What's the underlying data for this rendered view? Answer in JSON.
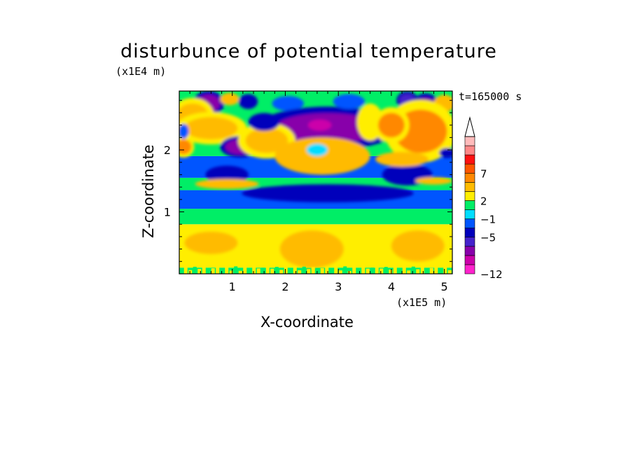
{
  "chart_data": {
    "type": "heatmap",
    "title": "disturbunce of potential temperature",
    "time_label": "t=165000 s",
    "xlabel": "X-coordinate",
    "ylabel": "Z-coordinate",
    "x_unit": "(x1E5 m)",
    "y_unit": "(x1E4 m)",
    "xlim": [
      0,
      5.15
    ],
    "ylim": [
      0,
      2.95
    ],
    "x_ticks": [
      1,
      2,
      3,
      4,
      5
    ],
    "y_ticks": [
      1,
      2
    ],
    "colorbar": {
      "colors": [
        "#ff22cc",
        "#cc00aa",
        "#8800aa",
        "#4422cc",
        "#0000bb",
        "#0055ff",
        "#00ddff",
        "#00ee66",
        "#ffee00",
        "#ffbb00",
        "#ff8800",
        "#ff5500",
        "#ff1111",
        "#ff8888",
        "#ffbbbb"
      ],
      "labels": [
        "-12",
        "-5",
        "-1",
        "2",
        "7"
      ],
      "extend": "max"
    },
    "features": [
      {
        "x": 0.55,
        "z": 2.75,
        "value": -6,
        "rx": 0.22,
        "rz": 0.14
      },
      {
        "x": 0.95,
        "z": 2.82,
        "value": 3,
        "rx": 0.18,
        "rz": 0.1
      },
      {
        "x": 1.3,
        "z": 2.78,
        "value": -3,
        "rx": 0.18,
        "rz": 0.12
      },
      {
        "x": 2.05,
        "z": 2.75,
        "value": -2,
        "rx": 0.3,
        "rz": 0.12
      },
      {
        "x": 2.8,
        "z": 2.35,
        "value": -6,
        "rx": 1.0,
        "rz": 0.24
      },
      {
        "x": 2.65,
        "z": 2.4,
        "value": -9,
        "rx": 0.22,
        "rz": 0.09
      },
      {
        "x": 3.2,
        "z": 2.78,
        "value": -2,
        "rx": 0.3,
        "rz": 0.12
      },
      {
        "x": 4.3,
        "z": 2.8,
        "value": -5,
        "rx": 0.15,
        "rz": 0.1
      },
      {
        "x": 4.65,
        "z": 2.68,
        "value": -6,
        "rx": 0.2,
        "rz": 0.16
      },
      {
        "x": 5.0,
        "z": 2.75,
        "value": 3,
        "rx": 0.2,
        "rz": 0.14
      },
      {
        "x": 0.25,
        "z": 2.55,
        "value": 4,
        "rx": 0.3,
        "rz": 0.2
      },
      {
        "x": 0.6,
        "z": 2.35,
        "value": 4,
        "rx": 0.5,
        "rz": 0.18
      },
      {
        "x": 1.15,
        "z": 2.05,
        "value": -6,
        "rx": 0.28,
        "rz": 0.12
      },
      {
        "x": 1.65,
        "z": 2.15,
        "value": 4,
        "rx": 0.4,
        "rz": 0.2
      },
      {
        "x": 1.6,
        "z": 2.45,
        "value": -4,
        "rx": 0.22,
        "rz": 0.1
      },
      {
        "x": 0.9,
        "z": 1.6,
        "value": -4,
        "rx": 0.3,
        "rz": 0.1
      },
      {
        "x": 0.08,
        "z": 2.05,
        "value": 5,
        "rx": 0.15,
        "rz": 0.12
      },
      {
        "x": 0.08,
        "z": 2.3,
        "value": -2,
        "rx": 0.1,
        "rz": 0.12
      },
      {
        "x": 1.5,
        "z": 1.3,
        "value": -3,
        "rx": 0.25,
        "rz": 0.08
      },
      {
        "x": 2.8,
        "z": 1.3,
        "value": -4,
        "rx": 1.2,
        "rz": 0.1
      },
      {
        "x": 2.7,
        "z": 1.9,
        "value": 3,
        "rx": 0.9,
        "rz": 0.3
      },
      {
        "x": 2.6,
        "z": 2.0,
        "value": -1,
        "rx": 0.2,
        "rz": 0.1
      },
      {
        "x": 3.6,
        "z": 2.45,
        "value": 2,
        "rx": 0.25,
        "rz": 0.3
      },
      {
        "x": 4.55,
        "z": 2.3,
        "value": 8,
        "rx": 0.3,
        "rz": 0.2
      },
      {
        "x": 4.55,
        "z": 2.3,
        "value": 5,
        "rx": 0.5,
        "rz": 0.35
      },
      {
        "x": 4.0,
        "z": 2.4,
        "value": 5,
        "rx": 0.25,
        "rz": 0.2
      },
      {
        "x": 4.3,
        "z": 1.6,
        "value": -4,
        "rx": 0.35,
        "rz": 0.12
      },
      {
        "x": 4.2,
        "z": 1.85,
        "value": 3,
        "rx": 0.5,
        "rz": 0.12
      },
      {
        "x": 5.05,
        "z": 1.95,
        "value": -3,
        "rx": 0.15,
        "rz": 0.08
      },
      {
        "x": 0.9,
        "z": 1.45,
        "value": 3,
        "rx": 0.6,
        "rz": 0.08
      },
      {
        "x": 4.8,
        "z": 1.5,
        "value": 3,
        "rx": 0.35,
        "rz": 0.06
      },
      {
        "x": 2.5,
        "z": 0.4,
        "value": 3,
        "rx": 0.6,
        "rz": 0.3
      },
      {
        "x": 4.5,
        "z": 0.45,
        "value": 3,
        "rx": 0.5,
        "rz": 0.25
      },
      {
        "x": 0.6,
        "z": 0.5,
        "value": 3,
        "rx": 0.5,
        "rz": 0.18
      }
    ]
  }
}
